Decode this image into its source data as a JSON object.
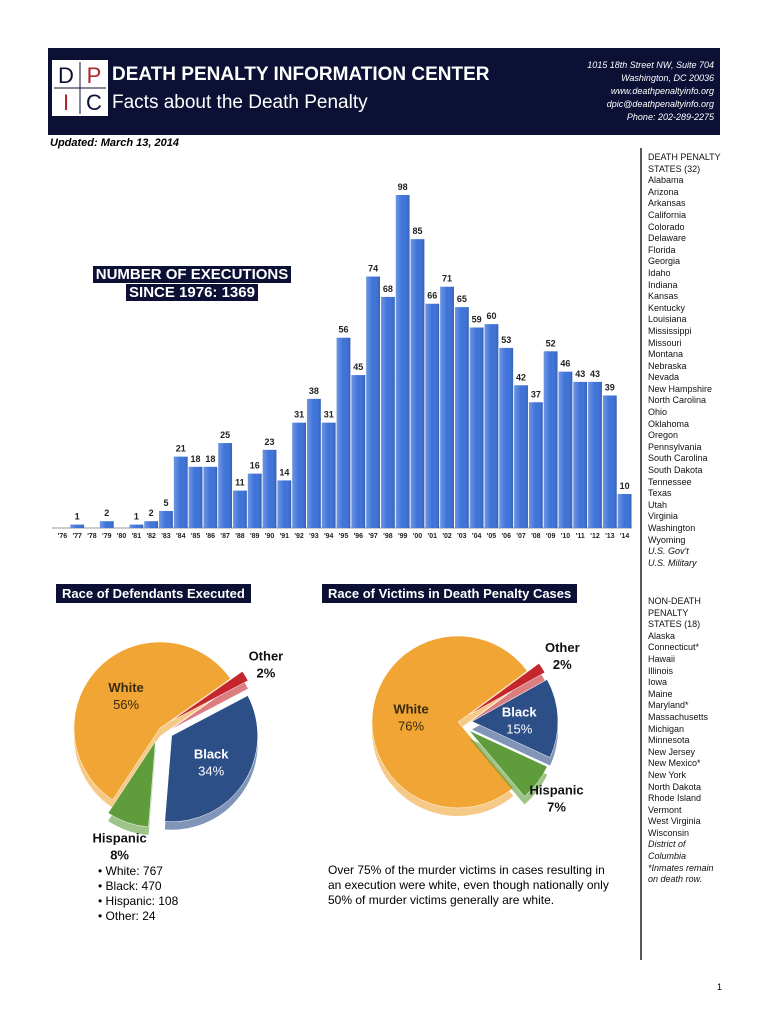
{
  "header": {
    "logo": [
      "D",
      "P",
      "I",
      "C"
    ],
    "title": "DEATH PENALTY INFORMATION CENTER",
    "subtitle": "Facts about the Death Penalty",
    "address": [
      "1015 18th Street NW, Suite 704",
      "Washington, DC 20036",
      "www.deathpenaltyinfo.org",
      "dpic@deathpenaltyinfo.org",
      "Phone: 202-289-2275"
    ]
  },
  "updated": "Updated: March 13, 2014",
  "chart_data": [
    {
      "type": "bar",
      "title": "NUMBER OF EXECUTIONS SINCE 1976: 1369",
      "categories": [
        "'76",
        "'77",
        "'78",
        "'79",
        "'80",
        "'81",
        "'82",
        "'83",
        "'84",
        "'85",
        "'86",
        "'87",
        "'88",
        "'89",
        "'90",
        "'91",
        "'92",
        "'93",
        "'94",
        "'95",
        "'96",
        "'97",
        "'98",
        "'99",
        "'00",
        "'01",
        "'02",
        "'03",
        "'04",
        "'05",
        "'06",
        "'07",
        "'08",
        "'09",
        "'10",
        "'11",
        "'12",
        "'13",
        "'14"
      ],
      "values": [
        0,
        1,
        0,
        2,
        0,
        1,
        2,
        5,
        21,
        18,
        18,
        25,
        11,
        16,
        23,
        14,
        31,
        38,
        31,
        56,
        45,
        74,
        68,
        98,
        85,
        66,
        71,
        65,
        59,
        60,
        53,
        42,
        37,
        52,
        46,
        43,
        43,
        39,
        10
      ],
      "color": "#3d72d9"
    },
    {
      "type": "pie",
      "title": "Race of Defendants Executed",
      "categories": [
        "White",
        "Other",
        "Black",
        "Hispanic"
      ],
      "values": [
        56,
        2,
        34,
        8
      ],
      "value_labels": [
        "56%",
        "2%",
        "34%",
        "8%"
      ],
      "colors": [
        "#f0a535",
        "#c4262b",
        "#2d4f88",
        "#5e9c3c"
      ],
      "notes": [
        "White: 767",
        "Black: 470",
        "Hispanic: 108",
        "Other: 24"
      ]
    },
    {
      "type": "pie",
      "title": "Race of Victims in Death Penalty Cases",
      "categories": [
        "White",
        "Other",
        "Black",
        "Hispanic"
      ],
      "values": [
        76,
        2,
        15,
        7
      ],
      "value_labels": [
        "76%",
        "2%",
        "15%",
        "7%"
      ],
      "colors": [
        "#f0a535",
        "#c4262b",
        "#2d4f88",
        "#5e9c3c"
      ],
      "caption": "Over 75% of the murder victims in cases resulting in an execution were white, even though nationally only 50% of murder victims generally are white."
    }
  ],
  "sidebar": {
    "death_penalty": {
      "heading": "DEATH PENALTY STATES (32)",
      "states": [
        "Alabama",
        "Arizona",
        "Arkansas",
        "California",
        "Colorado",
        "Delaware",
        "Florida",
        "Georgia",
        "Idaho",
        "Indiana",
        "Kansas",
        "Kentucky",
        "Louisiana",
        "Mississippi",
        "Missouri",
        "Montana",
        "Nebraska",
        "Nevada",
        "New Hampshire",
        "North Carolina",
        "Ohio",
        "Oklahoma",
        "Oregon",
        "Pennsylvania",
        "South Carolina",
        "South Dakota",
        "Tennessee",
        "Texas",
        "Utah",
        "Virginia",
        "Washington",
        "Wyoming"
      ],
      "federal": [
        "U.S. Gov't",
        "U.S. Military"
      ]
    },
    "non_death_penalty": {
      "heading": "NON-DEATH PENALTY STATES (18)",
      "states": [
        "Alaska",
        "Connecticut*",
        "Hawaii",
        "Illinois",
        "Iowa",
        "Maine",
        "Maryland*",
        "Massachusetts",
        "Michigan",
        "Minnesota",
        "New Jersey",
        "New Mexico*",
        "New York",
        "North Dakota",
        "Rhode Island",
        "Vermont",
        "West Virginia",
        "Wisconsin"
      ],
      "other": [
        "District of Columbia"
      ],
      "note": "*Inmates remain on death row."
    }
  },
  "page_number": "1"
}
